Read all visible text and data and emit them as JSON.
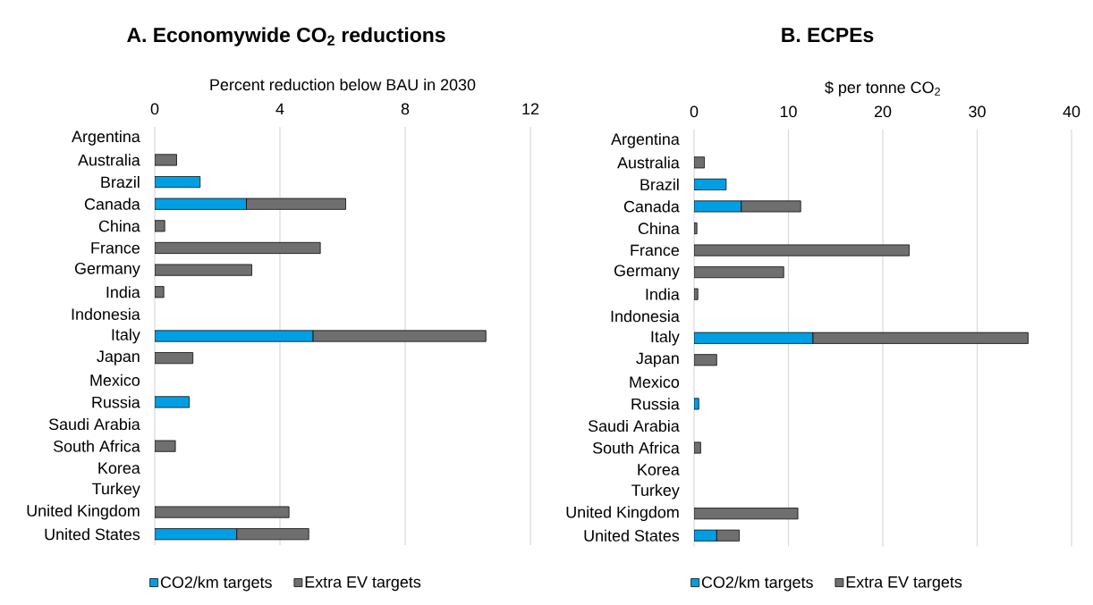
{
  "chart_data": [
    {
      "type": "bar",
      "orientation": "horizontal",
      "stacked": true,
      "title": "A. Economywide CO$_{2}$ reductions",
      "xlabel": "Percent reduction below BAU in 2030",
      "categories": [
        "Argentina",
        "Australia",
        "Brazil",
        "Canada",
        "China",
        "France",
        "Germany",
        "India",
        "Indonesia",
        "Italy",
        "Japan",
        "Mexico",
        "Russia",
        "Saudi Arabia",
        "South Africa",
        "Korea",
        "Turkey",
        "United Kingdom",
        "United States"
      ],
      "series": [
        {
          "name": "CO2/km targets",
          "color": "#009fe3",
          "values": [
            null,
            null,
            1.45,
            2.93,
            null,
            null,
            null,
            null,
            null,
            5.06,
            null,
            null,
            1.1,
            null,
            null,
            null,
            null,
            null,
            2.62
          ]
        },
        {
          "name": "Extra EV targets",
          "color": "#6e6f6e",
          "values": [
            null,
            0.7,
            null,
            3.17,
            0.32,
            5.29,
            3.1,
            0.29,
            null,
            5.52,
            1.22,
            null,
            null,
            null,
            0.66,
            null,
            null,
            4.29,
            2.3
          ]
        }
      ],
      "xlim": [
        0,
        12
      ],
      "xticks": [
        0,
        4,
        8,
        12
      ],
      "grid": "x",
      "legend": "bottom"
    },
    {
      "type": "bar",
      "orientation": "horizontal",
      "stacked": true,
      "title": "B. ECPEs",
      "xlabel": "$ per tonne CO$_{2}$",
      "categories": [
        "Argentina",
        "Australia",
        "Brazil",
        "Canada",
        "China",
        "France",
        "Germany",
        "India",
        "Indonesia",
        "Italy",
        "Japan",
        "Mexico",
        "Russia",
        "Saudi Arabia",
        "South Africa",
        "Korea",
        "Turkey",
        "United Kingdom",
        "United States"
      ],
      "series": [
        {
          "name": "CO2/km targets",
          "color": "#009fe3",
          "values": [
            null,
            null,
            3.4,
            5.0,
            null,
            null,
            null,
            null,
            null,
            12.6,
            null,
            null,
            0.5,
            null,
            null,
            null,
            null,
            null,
            2.4
          ]
        },
        {
          "name": "Extra EV targets",
          "color": "#6e6f6e",
          "values": [
            null,
            1.1,
            null,
            6.3,
            0.3,
            22.8,
            9.5,
            0.4,
            null,
            22.8,
            2.4,
            null,
            null,
            null,
            0.7,
            null,
            null,
            11.0,
            2.4
          ]
        }
      ],
      "xlim": [
        0,
        40
      ],
      "xticks": [
        0,
        10,
        20,
        30,
        40
      ],
      "grid": "x",
      "legend": "bottom"
    }
  ]
}
